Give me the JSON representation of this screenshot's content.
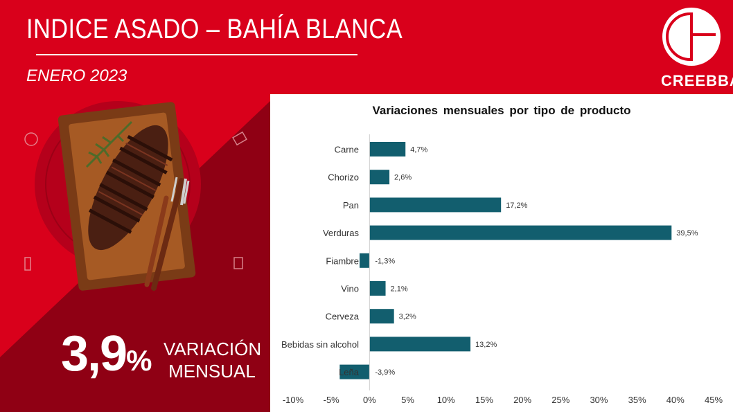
{
  "header": {
    "title": "INDICE ASADO – BAHÍA BLANCA",
    "subtitle": "ENERO 2023",
    "logo_text": "CREEBBA"
  },
  "kpi": {
    "value": "3,9",
    "unit": "%",
    "label_line1": "VARIACIÓN",
    "label_line2": "MENSUAL"
  },
  "colors": {
    "header_red": "#d9001b",
    "panel_dark_red": "#a80018",
    "bar": "#125e6e"
  },
  "chart_data": {
    "type": "bar",
    "orientation": "horizontal",
    "title": "Variaciones  mensuales  por tipo de producto",
    "categories": [
      "Carne",
      "Chorizo",
      "Pan",
      "Verduras",
      "Fiambre",
      "Vino",
      "Cerveza",
      "Bebidas sin alcohol",
      "Leña"
    ],
    "values": [
      4.7,
      2.6,
      17.2,
      39.5,
      -1.3,
      2.1,
      3.2,
      13.2,
      -3.9
    ],
    "value_labels": [
      "4,7%",
      "2,6%",
      "17,2%",
      "39,5%",
      "-1,3%",
      "2,1%",
      "3,2%",
      "13,2%",
      "-3,9%"
    ],
    "xlim": [
      -10,
      45
    ],
    "xticks": [
      -10,
      -5,
      0,
      5,
      10,
      15,
      20,
      25,
      30,
      35,
      40,
      45
    ],
    "xtick_labels": [
      "-10%",
      "-5%",
      "0%",
      "5%",
      "10%",
      "15%",
      "20%",
      "25%",
      "30%",
      "35%",
      "40%",
      "45%"
    ],
    "grid": false,
    "legend": "none"
  }
}
